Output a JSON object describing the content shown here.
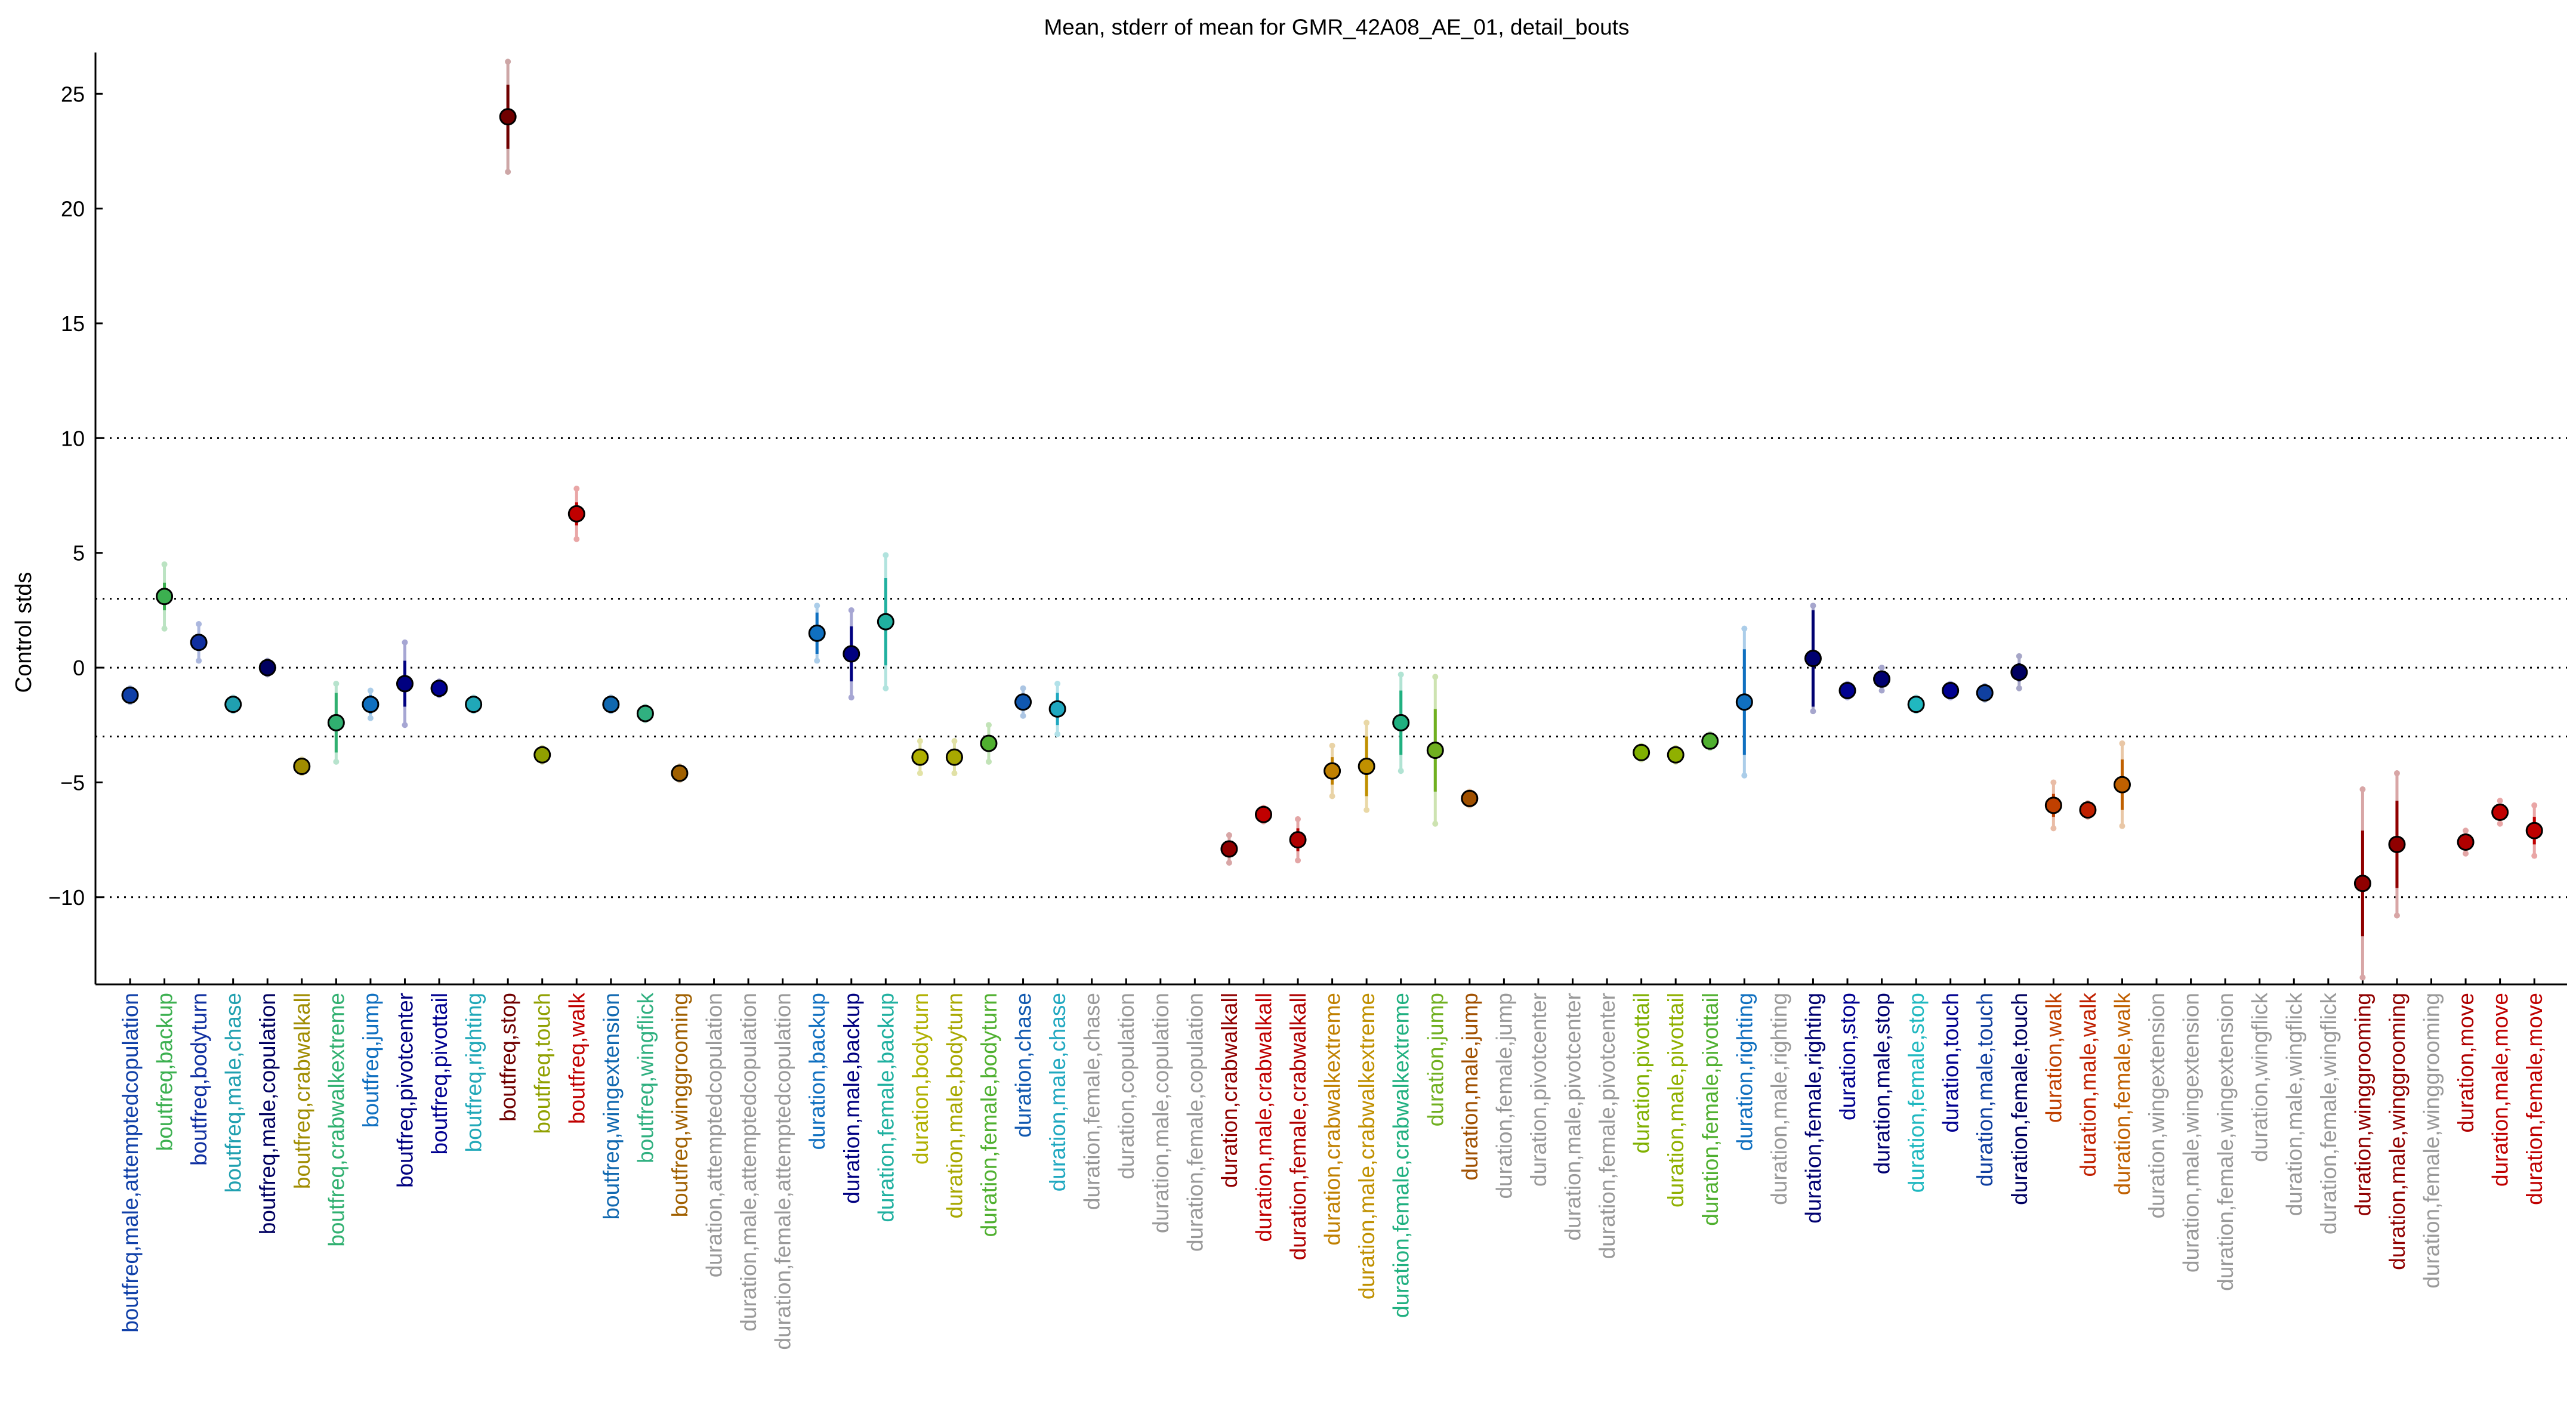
{
  "chart_data": {
    "type": "scatter",
    "title": "Mean, stderr of mean for GMR_42A08_AE_01, detail_bouts",
    "xlabel": "",
    "ylabel": "Control stds",
    "ylim": [
      -13.8,
      26.8
    ],
    "yticks": [
      "25",
      "20",
      "15",
      "10",
      "5",
      "0",
      "−5",
      "−10"
    ],
    "ytick_values": [
      25,
      20,
      15,
      10,
      5,
      0,
      -5,
      -10
    ],
    "reference_lines": [
      10,
      3,
      0,
      -3,
      -10
    ],
    "grid": false,
    "legend": "none",
    "categories": [
      "boutfreq,male,attemptedcopulation",
      "boutfreq,backup",
      "boutfreq,bodyturn",
      "boutfreq,male,chase",
      "boutfreq,male,copulation",
      "boutfreq,crabwalkall",
      "boutfreq,crabwalkextreme",
      "boutfreq,jump",
      "boutfreq,pivotcenter",
      "boutfreq,pivottail",
      "boutfreq,righting",
      "boutfreq,stop",
      "boutfreq,touch",
      "boutfreq,walk",
      "boutfreq,wingextension",
      "boutfreq,wingflick",
      "boutfreq,winggrooming",
      "duration,attemptedcopulation",
      "duration,male,attemptedcopulation",
      "duration,female,attemptedcopulation",
      "duration,backup",
      "duration,male,backup",
      "duration,female,backup",
      "duration,bodyturn",
      "duration,male,bodyturn",
      "duration,female,bodyturn",
      "duration,chase",
      "duration,male,chase",
      "duration,female,chase",
      "duration,copulation",
      "duration,male,copulation",
      "duration,female,copulation",
      "duration,crabwalkall",
      "duration,male,crabwalkall",
      "duration,female,crabwalkall",
      "duration,crabwalkextreme",
      "duration,male,crabwalkextreme",
      "duration,female,crabwalkextreme",
      "duration,jump",
      "duration,male,jump",
      "duration,female,jump",
      "duration,pivotcenter",
      "duration,male,pivotcenter",
      "duration,female,pivotcenter",
      "duration,pivottail",
      "duration,male,pivottail",
      "duration,female,pivottail",
      "duration,righting",
      "duration,male,righting",
      "duration,female,righting",
      "duration,stop",
      "duration,male,stop",
      "duration,female,stop",
      "duration,touch",
      "duration,male,touch",
      "duration,female,touch",
      "duration,walk",
      "duration,male,walk",
      "duration,female,walk",
      "duration,wingextension",
      "duration,male,wingextension",
      "duration,female,wingextension",
      "duration,wingflick",
      "duration,male,wingflick",
      "duration,female,wingflick",
      "duration,winggrooming",
      "duration,male,winggrooming",
      "duration,female,winggrooming",
      "duration,move",
      "duration,male,move",
      "duration,female,move"
    ],
    "label_colors": [
      "#1040a8",
      "#3cb050",
      "#1030a0",
      "#20a0b0",
      "#000060",
      "#a08c00",
      "#30b070",
      "#1070c0",
      "#000080",
      "#000090",
      "#20a8b8",
      "#700000",
      "#90a000",
      "#c00000",
      "#1068b0",
      "#30b080",
      "#a06000",
      "#999999",
      "#999999",
      "#999999",
      "#1070c0",
      "#000080",
      "#20b0a0",
      "#b0b000",
      "#a8a800",
      "#50b030",
      "#1058b0",
      "#20a8c0",
      "#999999",
      "#999999",
      "#999999",
      "#999999",
      "#900000",
      "#c00000",
      "#b00000",
      "#c08000",
      "#c09000",
      "#20b080",
      "#70b020",
      "#a05000",
      "#999999",
      "#999999",
      "#999999",
      "#999999",
      "#80b000",
      "#90b000",
      "#50b030",
      "#1070c0",
      "#999999",
      "#000070",
      "#000090",
      "#000070",
      "#20b8c0",
      "#000090",
      "#1040a0",
      "#000060",
      "#c04000",
      "#c02000",
      "#c06000",
      "#999999",
      "#999999",
      "#999999",
      "#999999",
      "#999999",
      "#999999",
      "#900000",
      "#900000",
      "#999999",
      "#b00000",
      "#c00000",
      "#c00000"
    ],
    "series": [
      {
        "means": [
          -1.2,
          3.1,
          1.1,
          -1.6,
          0.0,
          -4.3,
          -2.4,
          -1.6,
          -0.7,
          -0.9,
          -1.6,
          24.0,
          -3.8,
          6.7,
          -1.6,
          -2.0,
          -4.6,
          null,
          null,
          null,
          1.5,
          0.6,
          2.0,
          -3.9,
          -3.9,
          -3.3,
          -1.5,
          -1.8,
          null,
          null,
          null,
          null,
          -7.9,
          -6.4,
          -7.5,
          -4.5,
          -4.3,
          -2.4,
          -3.6,
          -5.7,
          null,
          null,
          null,
          null,
          -3.7,
          -3.8,
          -3.2,
          -1.5,
          null,
          0.4,
          -1.0,
          -0.5,
          -1.6,
          -1.0,
          -1.1,
          -0.2,
          -6.0,
          -6.2,
          -5.1,
          null,
          null,
          null,
          null,
          null,
          null,
          -9.4,
          -7.7,
          null,
          -7.6,
          -6.3,
          -7.1
        ],
        "stderr": [
          0.15,
          0.6,
          0.35,
          0.15,
          0.15,
          0.2,
          1.3,
          0.4,
          1.0,
          0.15,
          0.15,
          1.4,
          0.2,
          0.5,
          0.15,
          0.15,
          0.2,
          null,
          null,
          null,
          0.9,
          1.2,
          1.9,
          0.2,
          0.2,
          0.3,
          0.3,
          0.7,
          null,
          null,
          null,
          null,
          0.3,
          0.15,
          0.5,
          0.6,
          1.3,
          1.4,
          1.8,
          0.2,
          null,
          null,
          null,
          null,
          0.15,
          0.15,
          0.15,
          2.3,
          null,
          2.1,
          0.15,
          0.2,
          0.15,
          0.15,
          0.15,
          0.4,
          0.5,
          0.15,
          1.1,
          null,
          null,
          null,
          null,
          null,
          null,
          2.3,
          1.9,
          null,
          0.2,
          0.2,
          0.6
        ],
        "stderr_outer": [
          0.3,
          1.4,
          0.8,
          0.3,
          0.3,
          0.3,
          1.7,
          0.6,
          1.8,
          0.3,
          0.3,
          2.4,
          0.3,
          1.1,
          0.3,
          0.3,
          0.3,
          null,
          null,
          null,
          1.2,
          1.9,
          2.9,
          0.7,
          0.7,
          0.8,
          0.6,
          1.1,
          null,
          null,
          null,
          null,
          0.6,
          0.3,
          0.9,
          1.1,
          1.9,
          2.1,
          3.2,
          0.3,
          null,
          null,
          null,
          null,
          0.3,
          0.3,
          0.3,
          3.2,
          null,
          2.3,
          0.3,
          0.5,
          0.3,
          0.3,
          0.3,
          0.7,
          1.0,
          0.3,
          1.8,
          null,
          null,
          null,
          null,
          null,
          null,
          4.1,
          3.1,
          null,
          0.5,
          0.5,
          1.1
        ]
      }
    ]
  }
}
